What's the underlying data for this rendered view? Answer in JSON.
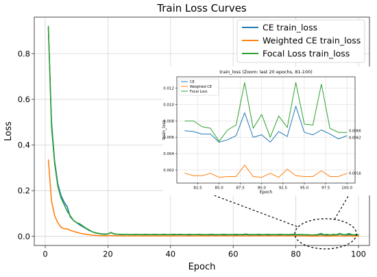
{
  "chart_data": [
    {
      "type": "line",
      "title": "Train Loss Curves",
      "xlabel": "Epoch",
      "ylabel": "Loss",
      "xlim": [
        -3.5,
        103.5
      ],
      "ylim": [
        -0.04,
        0.96
      ],
      "xticks": [
        0,
        20,
        40,
        60,
        80,
        100
      ],
      "xtick_labels": [
        "0",
        "20",
        "40",
        "60",
        "80",
        "100"
      ],
      "yticks": [
        0.0,
        0.2,
        0.4,
        0.6,
        0.8
      ],
      "ytick_labels": [
        "0.0",
        "0.2",
        "0.4",
        "0.6",
        "0.8"
      ],
      "grid": true,
      "legend": "top-right",
      "x": [
        1,
        2,
        3,
        4,
        5,
        6,
        7,
        8,
        9,
        10,
        11,
        12,
        13,
        14,
        15,
        16,
        17,
        18,
        19,
        20,
        21,
        22,
        23,
        24,
        25,
        26,
        27,
        28,
        29,
        30,
        31,
        32,
        33,
        34,
        35,
        36,
        37,
        38,
        39,
        40,
        41,
        42,
        43,
        44,
        45,
        46,
        47,
        48,
        49,
        50,
        51,
        52,
        53,
        54,
        55,
        56,
        57,
        58,
        59,
        60,
        61,
        62,
        63,
        64,
        65,
        66,
        67,
        68,
        69,
        70,
        71,
        72,
        73,
        74,
        75,
        76,
        77,
        78,
        79,
        80,
        81,
        82,
        83,
        84,
        85,
        86,
        87,
        88,
        89,
        90,
        91,
        92,
        93,
        94,
        95,
        96,
        97,
        98,
        99,
        100
      ],
      "series": [
        {
          "name": "CE train_loss",
          "color": "#1f77b4",
          "values": [
            0.91,
            0.5,
            0.33,
            0.23,
            0.18,
            0.15,
            0.13,
            0.085,
            0.07,
            0.06,
            0.05,
            0.042,
            0.034,
            0.026,
            0.02,
            0.016,
            0.013,
            0.011,
            0.01,
            0.011,
            0.016,
            0.011,
            0.009,
            0.008,
            0.008,
            0.009,
            0.008,
            0.007,
            0.008,
            0.008,
            0.007,
            0.008,
            0.007,
            0.007,
            0.008,
            0.007,
            0.007,
            0.008,
            0.007,
            0.007,
            0.007,
            0.007,
            0.008,
            0.007,
            0.007,
            0.006,
            0.007,
            0.007,
            0.007,
            0.006,
            0.007,
            0.006,
            0.007,
            0.006,
            0.006,
            0.007,
            0.006,
            0.006,
            0.007,
            0.006,
            0.006,
            0.007,
            0.006,
            0.008,
            0.006,
            0.006,
            0.007,
            0.006,
            0.006,
            0.007,
            0.006,
            0.006,
            0.007,
            0.006,
            0.006,
            0.007,
            0.006,
            0.006,
            0.007,
            0.006,
            0.0068,
            0.0067,
            0.0064,
            0.0064,
            0.0054,
            0.0057,
            0.0062,
            0.009,
            0.006,
            0.0063,
            0.0054,
            0.0067,
            0.0061,
            0.0098,
            0.0066,
            0.0063,
            0.0069,
            0.0064,
            0.0058,
            0.0062
          ]
        },
        {
          "name": "Weighted CE train_loss",
          "color": "#ff7f0e",
          "values": [
            0.335,
            0.155,
            0.09,
            0.06,
            0.04,
            0.033,
            0.033,
            0.026,
            0.022,
            0.018,
            0.014,
            0.011,
            0.009,
            0.007,
            0.005,
            0.004,
            0.003,
            0.003,
            0.003,
            0.003,
            0.003,
            0.003,
            0.002,
            0.002,
            0.002,
            0.002,
            0.002,
            0.002,
            0.002,
            0.002,
            0.002,
            0.002,
            0.002,
            0.002,
            0.002,
            0.002,
            0.002,
            0.002,
            0.002,
            0.002,
            0.002,
            0.002,
            0.002,
            0.002,
            0.002,
            0.002,
            0.002,
            0.002,
            0.002,
            0.002,
            0.002,
            0.002,
            0.002,
            0.002,
            0.002,
            0.002,
            0.002,
            0.002,
            0.002,
            0.002,
            0.002,
            0.002,
            0.002,
            0.002,
            0.002,
            0.002,
            0.002,
            0.002,
            0.002,
            0.002,
            0.002,
            0.002,
            0.002,
            0.002,
            0.002,
            0.002,
            0.002,
            0.002,
            0.002,
            0.002,
            0.0016,
            0.0013,
            0.0013,
            0.0016,
            0.0011,
            0.0012,
            0.0012,
            0.0026,
            0.0012,
            0.0011,
            0.0016,
            0.0011,
            0.0021,
            0.0013,
            0.0012,
            0.0012,
            0.0019,
            0.0012,
            0.0012,
            0.0016
          ]
        },
        {
          "name": "Focal Loss train_loss",
          "color": "#2ca02c",
          "values": [
            0.92,
            0.48,
            0.32,
            0.22,
            0.17,
            0.14,
            0.11,
            0.09,
            0.07,
            0.06,
            0.055,
            0.045,
            0.036,
            0.028,
            0.02,
            0.015,
            0.012,
            0.01,
            0.009,
            0.01,
            0.017,
            0.01,
            0.009,
            0.009,
            0.008,
            0.009,
            0.008,
            0.008,
            0.009,
            0.008,
            0.008,
            0.009,
            0.008,
            0.008,
            0.009,
            0.008,
            0.008,
            0.009,
            0.008,
            0.008,
            0.009,
            0.008,
            0.009,
            0.008,
            0.008,
            0.009,
            0.008,
            0.008,
            0.009,
            0.008,
            0.008,
            0.008,
            0.009,
            0.008,
            0.008,
            0.008,
            0.009,
            0.008,
            0.008,
            0.008,
            0.009,
            0.008,
            0.008,
            0.01,
            0.008,
            0.008,
            0.008,
            0.009,
            0.008,
            0.008,
            0.009,
            0.008,
            0.008,
            0.008,
            0.009,
            0.008,
            0.008,
            0.008,
            0.009,
            0.008,
            0.008,
            0.008,
            0.0073,
            0.0071,
            0.0055,
            0.0069,
            0.0075,
            0.0127,
            0.0071,
            0.0088,
            0.006,
            0.0086,
            0.0072,
            0.0127,
            0.0076,
            0.0075,
            0.0125,
            0.0071,
            0.0066,
            0.0066
          ]
        }
      ]
    },
    {
      "type": "line",
      "title": "train_loss (Zoom: last 20 epochs, 81-100)",
      "xlabel": "Epoch",
      "ylabel": "train_loss",
      "xlim": [
        80.05,
        100.95
      ],
      "ylim": [
        0.0004,
        0.0134
      ],
      "xticks": [
        82.5,
        85.0,
        87.5,
        90.0,
        92.5,
        95.0,
        97.5,
        100.0
      ],
      "xtick_labels": [
        "82.5",
        "85.0",
        "87.5",
        "90.0",
        "92.5",
        "95.0",
        "97.5",
        "100.0"
      ],
      "yticks": [
        0.002,
        0.004,
        0.006,
        0.008,
        0.01,
        0.012
      ],
      "ytick_labels": [
        "0.002",
        "0.004",
        "0.006",
        "0.008",
        "0.010",
        "0.012"
      ],
      "grid": true,
      "legend": "top-left",
      "end_labels": [
        {
          "series": 2,
          "text": "0.0066"
        },
        {
          "series": 0,
          "text": "0.0062"
        },
        {
          "series": 1,
          "text": "0.0016"
        }
      ],
      "series": [
        {
          "name": "CE",
          "color": "#1f77b4"
        },
        {
          "name": "Weighted CE",
          "color": "#ff7f0e"
        },
        {
          "name": "Focal Loss",
          "color": "#2ca02c"
        }
      ]
    }
  ]
}
